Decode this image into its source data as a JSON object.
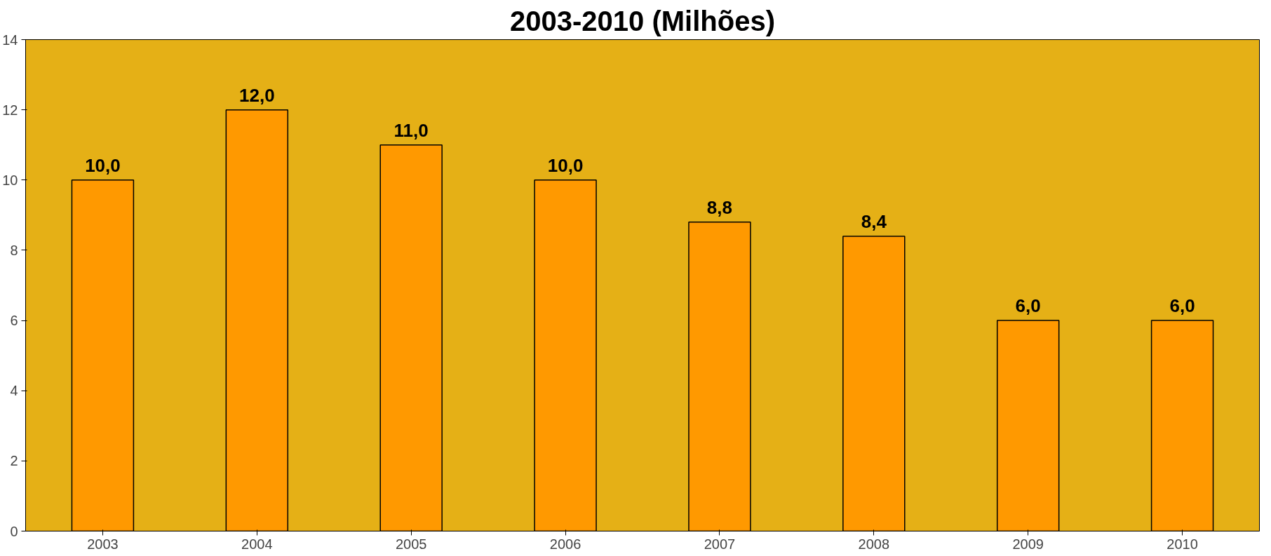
{
  "chart_data": {
    "type": "bar",
    "title": "2003-2010 (Milhões)",
    "categories": [
      "2003",
      "2004",
      "2005",
      "2006",
      "2007",
      "2008",
      "2009",
      "2010"
    ],
    "values": [
      10.0,
      12.0,
      11.0,
      10.0,
      8.8,
      8.4,
      6.0,
      6.0
    ],
    "value_labels": [
      "10,0",
      "12,0",
      "11,0",
      "10,0",
      "8,8",
      "8,4",
      "6,0",
      "6,0"
    ],
    "color": "#ff9900",
    "ylim": [
      0,
      14
    ],
    "yticks": [
      0,
      2,
      4,
      6,
      8,
      10,
      12,
      14
    ],
    "grid": false
  }
}
